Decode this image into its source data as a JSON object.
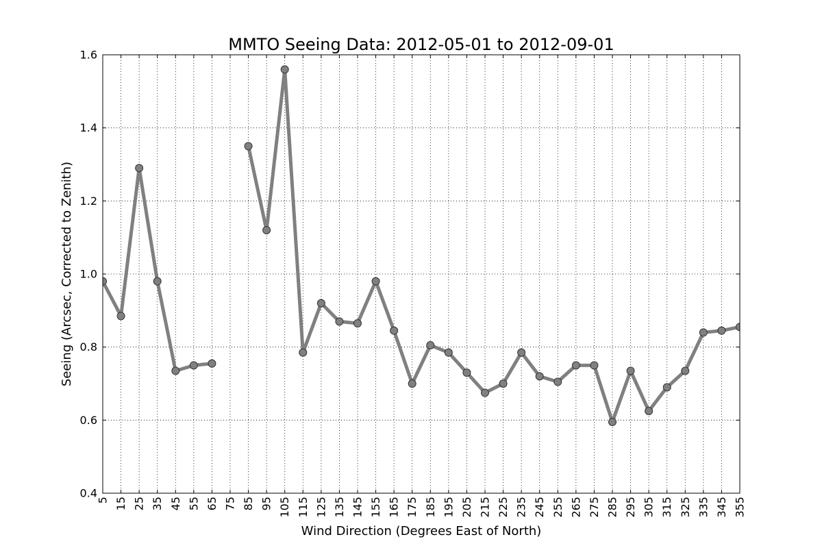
{
  "chart_data": {
    "type": "line",
    "title": "MMTO Seeing Data: 2012-05-01 to 2012-09-01",
    "xlabel": "Wind Direction (Degrees East of North)",
    "ylabel": "Seeing (Arcsec, Corrected to Zenith)",
    "xlim": [
      5,
      355
    ],
    "ylim": [
      0.4,
      1.6
    ],
    "x_ticks": [
      5,
      15,
      25,
      35,
      45,
      55,
      65,
      75,
      85,
      95,
      105,
      115,
      125,
      135,
      145,
      155,
      165,
      175,
      185,
      195,
      205,
      215,
      225,
      235,
      245,
      255,
      265,
      275,
      285,
      295,
      305,
      315,
      325,
      335,
      345,
      355
    ],
    "y_ticks": [
      0.4,
      0.6,
      0.8,
      1.0,
      1.2,
      1.4,
      1.6
    ],
    "y_tick_labels": [
      "0.4",
      "0.6",
      "0.8",
      "1.0",
      "1.2",
      "1.4",
      "1.6"
    ],
    "grid": true,
    "colors": {
      "line": "#808080",
      "marker_fill": "#808080",
      "marker_edge": "#333333"
    },
    "series": [
      {
        "x": [
          5,
          15,
          25,
          35,
          45,
          55,
          65,
          75,
          85,
          95,
          105,
          115,
          125,
          135,
          145,
          155,
          165,
          175,
          185,
          195,
          205,
          215,
          225,
          235,
          245,
          255,
          265,
          275,
          285,
          295,
          305,
          315,
          325,
          335,
          345,
          355
        ],
        "y": [
          0.98,
          0.885,
          1.29,
          0.98,
          0.735,
          0.75,
          0.755,
          null,
          1.35,
          1.12,
          1.56,
          0.785,
          0.92,
          0.87,
          0.865,
          0.98,
          0.845,
          0.7,
          0.805,
          0.785,
          0.73,
          0.675,
          0.7,
          0.785,
          0.72,
          0.705,
          0.75,
          0.75,
          0.595,
          0.735,
          0.625,
          0.69,
          0.735,
          0.84,
          0.845,
          0.855
        ]
      }
    ]
  }
}
